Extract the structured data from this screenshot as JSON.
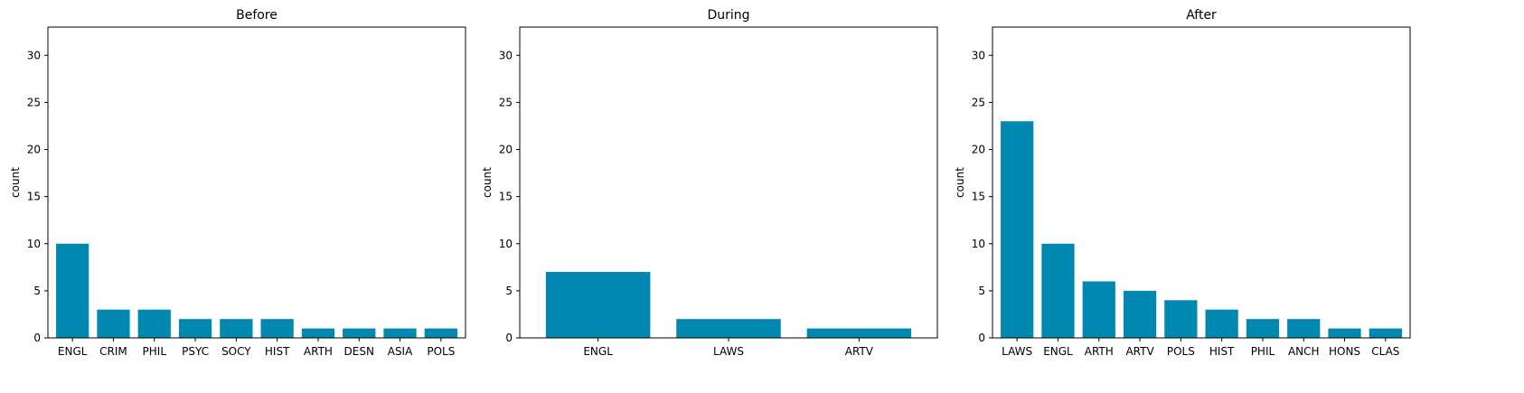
{
  "chart_data": [
    {
      "type": "bar",
      "title": "Before",
      "xlabel": "",
      "ylabel": "count",
      "ylim": [
        0,
        33
      ],
      "yticks": [
        0,
        5,
        10,
        15,
        20,
        25,
        30
      ],
      "grid": false,
      "color": "#0088B0",
      "categories": [
        "ENGL",
        "CRIM",
        "PHIL",
        "PSYC",
        "SOCY",
        "HIST",
        "ARTH",
        "DESN",
        "ASIA",
        "POLS"
      ],
      "values": [
        10,
        3,
        3,
        2,
        2,
        2,
        1,
        1,
        1,
        1
      ]
    },
    {
      "type": "bar",
      "title": "During",
      "xlabel": "",
      "ylabel": "count",
      "ylim": [
        0,
        33
      ],
      "yticks": [
        0,
        5,
        10,
        15,
        20,
        25,
        30
      ],
      "grid": false,
      "color": "#0088B0",
      "categories": [
        "ENGL",
        "LAWS",
        "ARTV"
      ],
      "values": [
        7,
        2,
        1
      ]
    },
    {
      "type": "bar",
      "title": "After",
      "xlabel": "",
      "ylabel": "count",
      "ylim": [
        0,
        33
      ],
      "yticks": [
        0,
        5,
        10,
        15,
        20,
        25,
        30
      ],
      "grid": false,
      "color": "#0088B0",
      "categories": [
        "LAWS",
        "ENGL",
        "ARTH",
        "ARTV",
        "POLS",
        "HIST",
        "PHIL",
        "ANCH",
        "HONS",
        "CLAS"
      ],
      "values": [
        23,
        10,
        6,
        5,
        4,
        3,
        2,
        2,
        1,
        1
      ]
    }
  ]
}
